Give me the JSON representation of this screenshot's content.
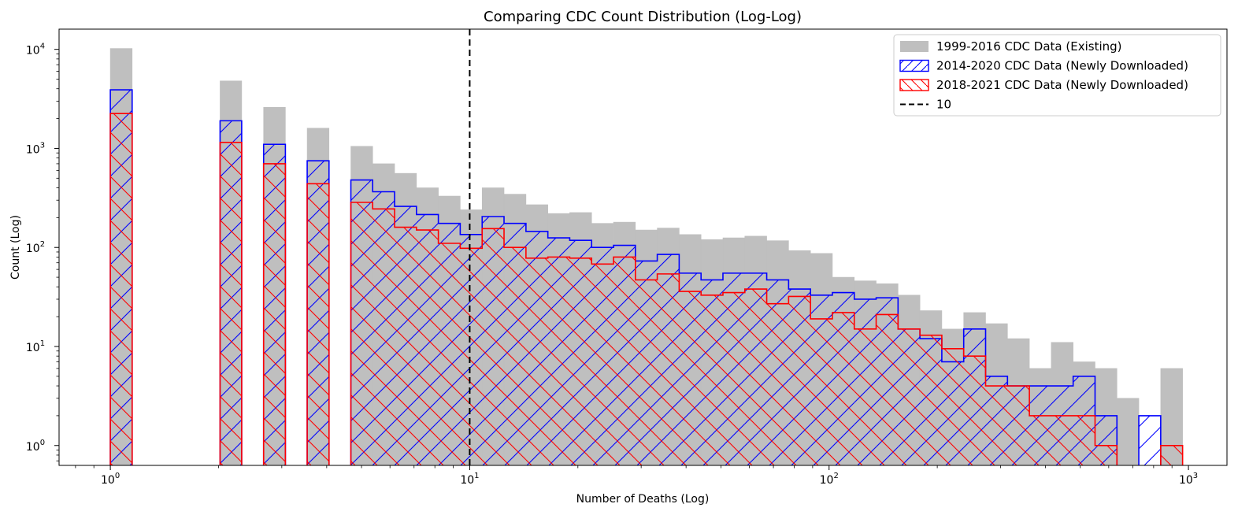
{
  "chart_data": {
    "type": "bar",
    "title": "Comparing CDC Count Distribution (Log-Log)",
    "xlabel": "Number of Deaths (Log)",
    "ylabel": "Count (Log)",
    "xscale": "log",
    "yscale": "log",
    "xlim": [
      0.72,
      1280
    ],
    "ylim": [
      0.63,
      16000
    ],
    "x_ticks": [
      1,
      10,
      100,
      1000
    ],
    "x_tick_labels": [
      [
        "10",
        "0"
      ],
      [
        "10",
        "1"
      ],
      [
        "10",
        "2"
      ],
      [
        "10",
        "3"
      ]
    ],
    "y_ticks": [
      1,
      10,
      100,
      1000,
      10000
    ],
    "y_tick_labels": [
      [
        "10",
        "0"
      ],
      [
        "10",
        "1"
      ],
      [
        "10",
        "2"
      ],
      [
        "10",
        "3"
      ],
      [
        "10",
        "4"
      ]
    ],
    "grid": false,
    "legend_position": "top-right",
    "bin_edges": [
      1.0,
      1.15,
      1.32,
      1.52,
      1.75,
      2.02,
      2.32,
      2.67,
      3.07,
      3.53,
      4.06,
      4.67,
      5.37,
      6.18,
      7.11,
      8.18,
      9.41,
      10.83,
      12.46,
      14.34,
      16.5,
      18.98,
      21.84,
      25.13,
      28.91,
      33.26,
      38.27,
      44.03,
      50.66,
      58.29,
      67.06,
      77.16,
      88.78,
      102.14,
      117.52,
      135.21,
      155.57,
      178.99,
      205.94,
      236.94,
      272.61,
      313.66,
      360.89,
      415.22,
      477.73,
      549.66,
      632.41,
      727.63,
      837.18,
      963.22
    ],
    "vline": {
      "x": 10,
      "label": "10",
      "color": "#000000"
    },
    "series": [
      {
        "name": "1999-2016 CDC Data (Existing)",
        "style": "filled",
        "color": "#bfbfbf",
        "values": [
          10200,
          0,
          0,
          0,
          0,
          4800,
          0,
          2600,
          0,
          1600,
          0,
          1050,
          700,
          560,
          400,
          330,
          240,
          400,
          345,
          270,
          220,
          225,
          175,
          180,
          150,
          157,
          135,
          120,
          125,
          130,
          117,
          93,
          87,
          50,
          46,
          43,
          33,
          23,
          15,
          22,
          17,
          12,
          6,
          11,
          7,
          6,
          3,
          0,
          6
        ]
      },
      {
        "name": "2014-2020 CDC Data (Newly Downloaded)",
        "style": "hatched-forward",
        "color": "#0000ff",
        "values": [
          3900,
          0,
          0,
          0,
          0,
          1900,
          0,
          1100,
          0,
          750,
          0,
          480,
          365,
          260,
          215,
          175,
          135,
          205,
          175,
          145,
          125,
          118,
          100,
          105,
          73,
          85,
          55,
          47,
          55,
          55,
          47,
          38,
          33,
          35,
          30,
          31,
          15,
          12,
          7,
          15,
          5,
          4,
          4,
          4,
          5,
          2,
          0,
          2,
          0.5
        ]
      },
      {
        "name": "2018-2021 CDC Data (Newly Downloaded)",
        "style": "hatched-back",
        "color": "#ff0000",
        "values": [
          2250,
          0,
          0,
          0,
          0,
          1150,
          0,
          700,
          0,
          440,
          0,
          285,
          245,
          160,
          150,
          110,
          98,
          155,
          100,
          78,
          80,
          78,
          68,
          80,
          47,
          54,
          36,
          33,
          35,
          38,
          27,
          32,
          19,
          22,
          15,
          21,
          15,
          13,
          9.5,
          8,
          4,
          4,
          2,
          2,
          2,
          1,
          0.5,
          0.5,
          1
        ]
      }
    ]
  },
  "legend": {
    "items": [
      {
        "label": "1999-2016 CDC Data (Existing)",
        "kind": "filled",
        "color": "#bfbfbf"
      },
      {
        "label": "2014-2020 CDC Data (Newly Downloaded)",
        "kind": "hatched-forward",
        "color": "#0000ff"
      },
      {
        "label": "2018-2021 CDC Data (Newly Downloaded)",
        "kind": "hatched-back",
        "color": "#ff0000"
      },
      {
        "label": "10",
        "kind": "dashed-line",
        "color": "#000000"
      }
    ]
  }
}
